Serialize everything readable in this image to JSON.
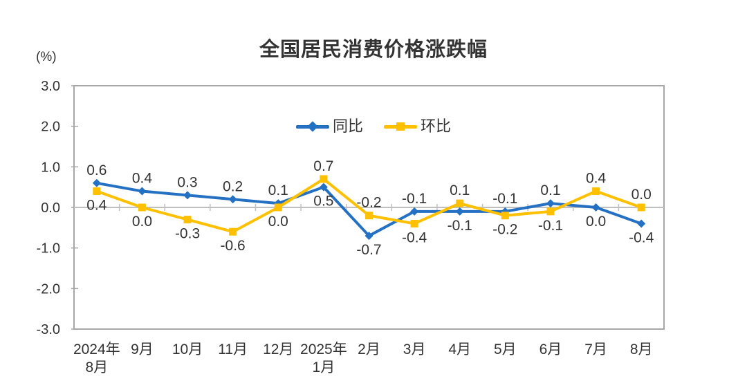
{
  "chart_data": {
    "type": "line",
    "title": "全国居民消费价格涨跌幅",
    "unit_label": "(%)",
    "categories": [
      "2024年\n8月",
      "9月",
      "10月",
      "11月",
      "12月",
      "2025年\n1月",
      "2月",
      "3月",
      "4月",
      "5月",
      "6月",
      "7月",
      "8月"
    ],
    "series": [
      {
        "name": "同比",
        "color": "#2470C3",
        "marker": "diamond",
        "values": [
          0.6,
          0.4,
          0.3,
          0.2,
          0.1,
          0.5,
          -0.7,
          -0.1,
          -0.1,
          -0.1,
          0.1,
          0.0,
          -0.4
        ]
      },
      {
        "name": "环比",
        "color": "#FFC000",
        "marker": "square",
        "values": [
          0.4,
          0.0,
          -0.3,
          -0.6,
          0.0,
          0.7,
          -0.2,
          -0.4,
          0.1,
          -0.2,
          -0.1,
          0.4,
          0.0
        ]
      }
    ],
    "ylim": [
      -3.0,
      3.0
    ],
    "ytick_step": 1.0,
    "ytick_labels": [
      "3.0",
      "2.0",
      "1.0",
      "0.0",
      "-1.0",
      "-2.0",
      "-3.0"
    ],
    "grid": false,
    "legend_position": "top-center-inside",
    "colors": {
      "frame": "#a6a6a6",
      "zero_line": "#bfbfbf",
      "text": "#333333",
      "background": "#ffffff"
    }
  }
}
